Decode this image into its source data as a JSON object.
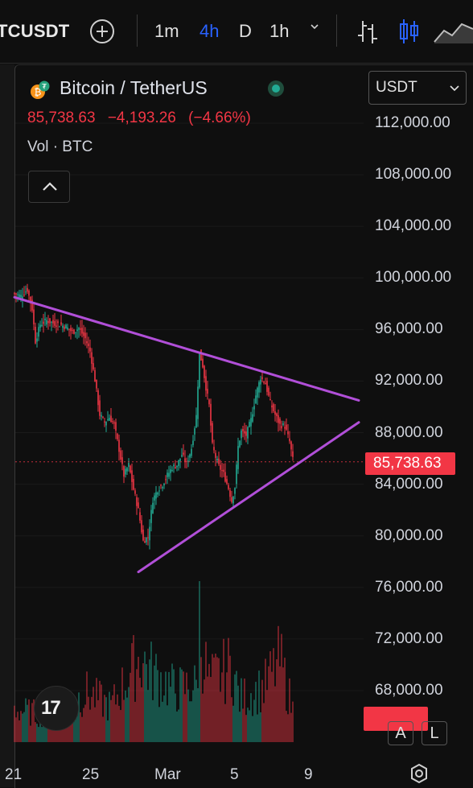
{
  "toolbar": {
    "symbol": "TCUSDT",
    "timeframes": [
      {
        "label": "1m",
        "active": false
      },
      {
        "label": "4h",
        "active": true
      },
      {
        "label": "D",
        "active": false
      },
      {
        "label": "1h",
        "active": false
      }
    ],
    "icons": [
      "plus-circle-icon",
      "chevron-down-icon",
      "bar-style-icon",
      "candle-style-icon",
      "area-style-icon"
    ]
  },
  "legend": {
    "title": "Bitcoin / TetherUS",
    "price": "85,738.63",
    "change": "−4,193.26",
    "change_pct": "(−4.66%)",
    "volume_label": "Vol · BTC"
  },
  "currency": "USDT",
  "last_price_tag": "85,738.63",
  "scale_buttons": [
    "A",
    "L"
  ],
  "colors": {
    "up": "#22ab94",
    "down": "#f23645",
    "trendline": "#b14fd8",
    "accent": "#2962ff"
  },
  "chart_data": {
    "type": "candlestick",
    "y_axis_labels": [
      "112,000.00",
      "108,000.00",
      "104,000.00",
      "100,000.00",
      "96,000.00",
      "92,000.00",
      "88,000.00",
      "84,000.00",
      "80,000.00",
      "76,000.00",
      "72,000.00",
      "68,000.00"
    ],
    "y_axis_values": [
      112000,
      108000,
      104000,
      100000,
      96000,
      92000,
      88000,
      84000,
      80000,
      76000,
      72000,
      68000
    ],
    "x_axis_labels": [
      "21",
      "25",
      "Mar",
      "5",
      "9"
    ],
    "ylim": [
      66000,
      114000
    ],
    "last_price": 85738.63,
    "close_path": [
      [
        0,
        98800
      ],
      [
        4,
        98600
      ],
      [
        8,
        99100
      ],
      [
        11,
        97600
      ],
      [
        13,
        95100
      ],
      [
        16,
        96400
      ],
      [
        20,
        96700
      ],
      [
        24,
        96500
      ],
      [
        28,
        96400
      ],
      [
        32,
        96200
      ],
      [
        36,
        95800
      ],
      [
        40,
        96100
      ],
      [
        44,
        95300
      ],
      [
        47,
        94300
      ],
      [
        50,
        92100
      ],
      [
        53,
        89400
      ],
      [
        56,
        88800
      ],
      [
        59,
        89200
      ],
      [
        62,
        88600
      ],
      [
        65,
        86700
      ],
      [
        68,
        84700
      ],
      [
        71,
        85500
      ],
      [
        74,
        83600
      ],
      [
        77,
        82000
      ],
      [
        80,
        79600
      ],
      [
        83,
        79900
      ],
      [
        86,
        82800
      ],
      [
        89,
        83600
      ],
      [
        92,
        84000
      ],
      [
        95,
        84700
      ],
      [
        98,
        85300
      ],
      [
        101,
        85500
      ],
      [
        104,
        86300
      ],
      [
        107,
        85600
      ],
      [
        110,
        86800
      ],
      [
        113,
        89300
      ],
      [
        115,
        94200
      ],
      [
        117,
        93200
      ],
      [
        119,
        91500
      ],
      [
        121,
        90100
      ],
      [
        123,
        87000
      ],
      [
        125,
        86100
      ],
      [
        127,
        85400
      ],
      [
        130,
        84800
      ],
      [
        133,
        83700
      ],
      [
        135,
        82700
      ],
      [
        137,
        83800
      ],
      [
        139,
        86900
      ],
      [
        141,
        88100
      ],
      [
        144,
        87800
      ],
      [
        147,
        89000
      ],
      [
        150,
        90900
      ],
      [
        153,
        92300
      ],
      [
        156,
        91800
      ],
      [
        159,
        90300
      ],
      [
        162,
        89400
      ],
      [
        165,
        88600
      ],
      [
        168,
        88500
      ],
      [
        171,
        87300
      ],
      [
        173,
        85900
      ]
    ],
    "volume_peak": [
      [
        0,
        0.3
      ],
      [
        20,
        0.25
      ],
      [
        45,
        0.45
      ],
      [
        60,
        0.33
      ],
      [
        78,
        0.78
      ],
      [
        85,
        0.65
      ],
      [
        100,
        0.48
      ],
      [
        113,
        0.52
      ],
      [
        115,
        1.0
      ],
      [
        118,
        0.75
      ],
      [
        121,
        0.55
      ],
      [
        135,
        0.7
      ],
      [
        140,
        0.4
      ],
      [
        155,
        0.5
      ],
      [
        165,
        0.75
      ],
      [
        173,
        0.3
      ]
    ],
    "trendlines": [
      {
        "name": "upper",
        "from": [
          0,
          98500
        ],
        "to": [
          214,
          90500
        ]
      },
      {
        "name": "lower",
        "from": [
          77,
          77200
        ],
        "to": [
          214,
          88800
        ]
      }
    ]
  }
}
